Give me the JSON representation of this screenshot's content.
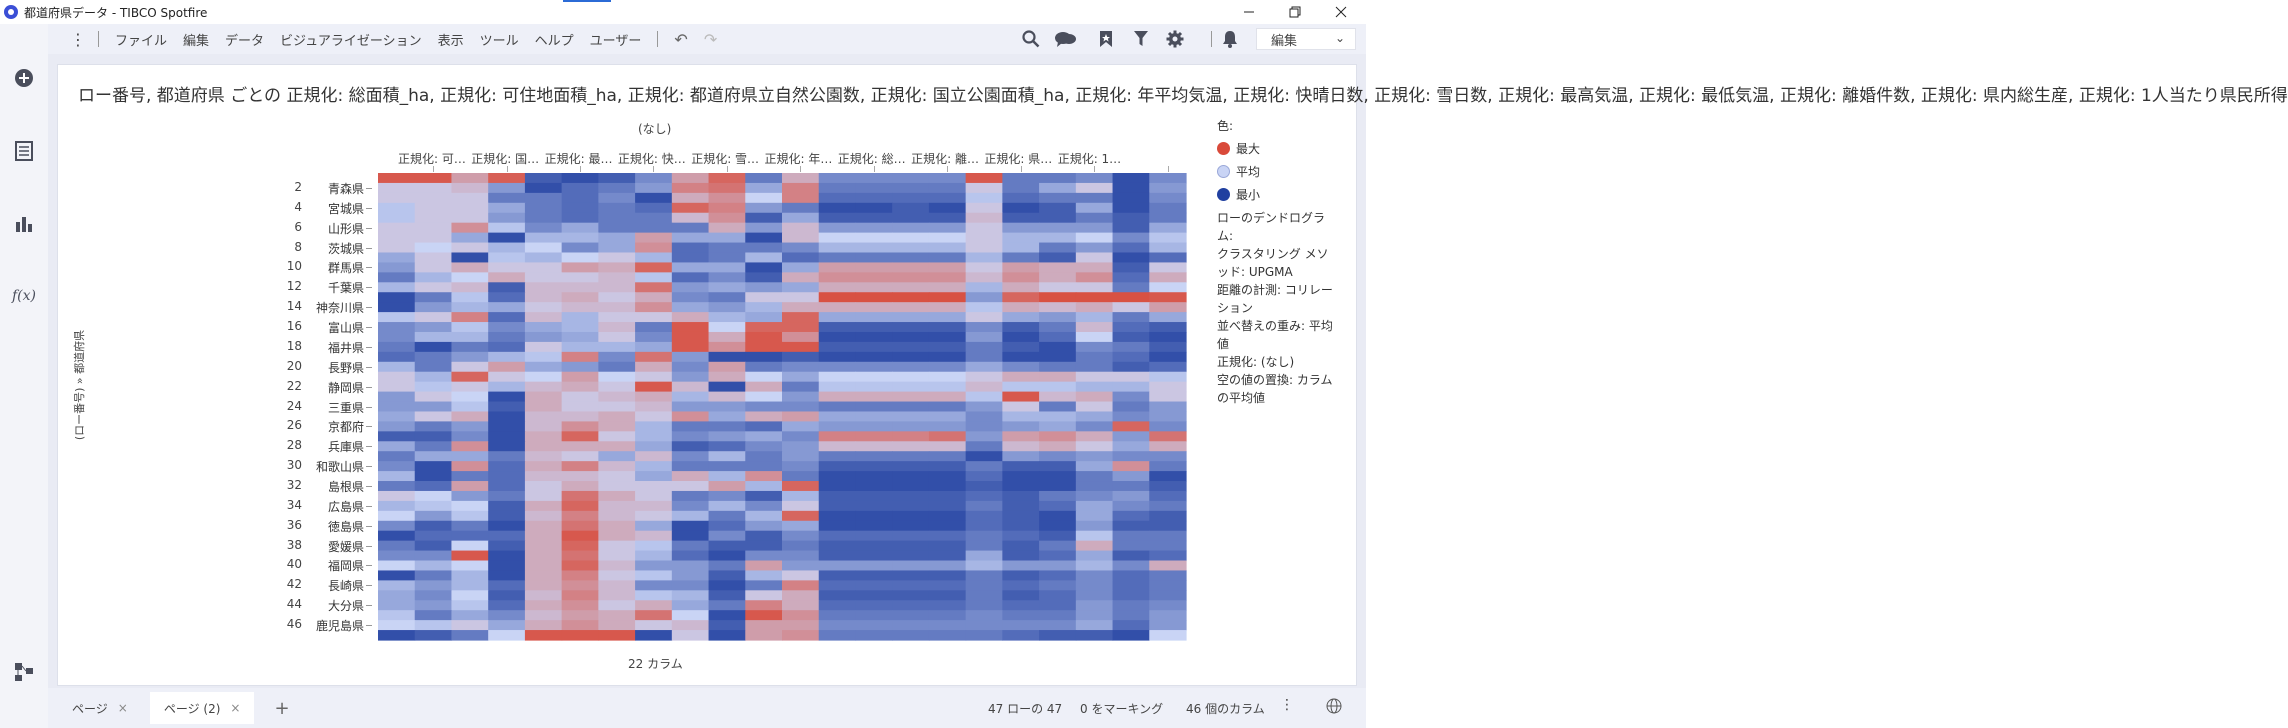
{
  "window": {
    "title": "都道府県データ - TIBCO Spotfire"
  },
  "menu": [
    "ファイル",
    "編集",
    "データ",
    "ビジュアライゼーション",
    "表示",
    "ツール",
    "ヘルプ",
    "ユーザー"
  ],
  "toolbar": {
    "edit_label": "編集"
  },
  "visualization": {
    "title": "ロー番号, 都道府県 ごとの 正規化: 総面積_ha, 正規化: 可住地面積_ha, 正規化: 都道府県立自然公園数, 正規化: 国立公園面積_ha, 正規化: 年平均気温, 正規化: 快晴日数, 正規化: 雪日数, 正規化: 最高気温, 正規化: 最低気温, 正規化: 離婚件数, 正規化: 県内総生産, 正規化: 1人当たり県民所得",
    "column_group": "(なし)",
    "y_axis_title": "(ロー番号)  »  都道府県",
    "x_axis_title": "22 カラム"
  },
  "chart_data": {
    "type": "heatmap",
    "column_headers": [
      "正規化: 可…",
      "正規化: 国…",
      "正規化: 最…",
      "正規化: 快…",
      "正規化: 雪…",
      "正規化: 年…",
      "正規化: 総…",
      "正規化: 離…",
      "正規化: 県…",
      "正規化: 1…"
    ],
    "row_tick_numbers": [
      "2",
      "4",
      "6",
      "8",
      "10",
      "12",
      "14",
      "16",
      "18",
      "20",
      "22",
      "24",
      "26",
      "28",
      "30",
      "32",
      "34",
      "36",
      "38",
      "40",
      "42",
      "44",
      "46"
    ],
    "row_tick_labels": [
      "青森県",
      "宮城県",
      "山形県",
      "茨城県",
      "群馬県",
      "千葉県",
      "神奈川県",
      "富山県",
      "福井県",
      "長野県",
      "静岡県",
      "三重県",
      "京都府",
      "兵庫県",
      "和歌山県",
      "島根県",
      "広島県",
      "徳島県",
      "愛媛県",
      "福岡県",
      "長崎県",
      "大分県",
      "鹿児島県"
    ],
    "n_rows": 47,
    "n_columns": 22,
    "color_scale": {
      "max": "#d94a3a",
      "mid": "#c9d4f5",
      "min": "#2140a0"
    },
    "values": [
      [
        0.9,
        0.9,
        0.4,
        0.85,
        -0.8,
        -0.9,
        -0.8,
        -0.5,
        0.4,
        0.8,
        -0.6,
        0.3,
        -0.5,
        -0.5,
        -0.5,
        -0.5,
        0.9,
        -0.6,
        -0.6,
        -0.5,
        -0.9,
        -0.5
      ],
      [
        0.1,
        0.1,
        0.2,
        -0.4,
        -0.9,
        -0.7,
        -0.6,
        -0.4,
        0.6,
        0.7,
        -0.3,
        0.6,
        -0.6,
        -0.6,
        -0.6,
        -0.6,
        0.1,
        -0.6,
        -0.3,
        0.1,
        -0.9,
        -0.4
      ],
      [
        0.1,
        0.1,
        0.1,
        -0.6,
        -0.6,
        -0.7,
        -0.5,
        -0.9,
        0.3,
        0.5,
        0.0,
        0.6,
        -0.7,
        -0.7,
        -0.7,
        -0.7,
        -0.1,
        -0.7,
        -0.6,
        -0.6,
        -0.9,
        -0.5
      ],
      [
        -0.1,
        0.1,
        0.1,
        -0.3,
        -0.6,
        -0.7,
        -0.6,
        -0.7,
        0.8,
        0.6,
        -0.4,
        -0.6,
        -0.9,
        -0.9,
        -0.8,
        -0.9,
        0.1,
        -0.9,
        -0.8,
        -0.3,
        -0.9,
        -0.6
      ],
      [
        -0.1,
        0.1,
        0.1,
        -0.4,
        -0.6,
        -0.7,
        -0.6,
        -0.6,
        0.2,
        0.5,
        -0.8,
        -0.3,
        -0.8,
        -0.8,
        -0.8,
        -0.8,
        0.2,
        -0.8,
        -0.8,
        -0.6,
        -0.8,
        -0.6
      ],
      [
        0.1,
        0.1,
        0.5,
        -0.1,
        -0.5,
        -0.3,
        -0.6,
        -0.6,
        -0.6,
        0.3,
        -0.4,
        0.2,
        -0.4,
        -0.4,
        -0.4,
        -0.4,
        0.1,
        -0.4,
        -0.4,
        -0.4,
        -0.8,
        -0.3
      ],
      [
        0.1,
        0.1,
        -0.3,
        -0.9,
        -0.2,
        -0.2,
        -0.3,
        0.4,
        -0.3,
        -0.3,
        -0.9,
        0.2,
        0.0,
        0.0,
        0.0,
        0.0,
        0.1,
        -0.2,
        -0.2,
        0.0,
        -0.5,
        -0.1
      ],
      [
        0.1,
        0.0,
        0.1,
        -0.2,
        0.0,
        -0.5,
        -0.3,
        0.5,
        -0.7,
        -0.6,
        -0.6,
        -0.5,
        -0.2,
        -0.2,
        -0.2,
        -0.2,
        0.1,
        -0.2,
        -0.6,
        -0.4,
        -0.7,
        -0.2
      ],
      [
        -0.3,
        0.1,
        -0.9,
        -0.1,
        -0.2,
        0.0,
        0.1,
        -0.2,
        -0.7,
        -0.6,
        -0.2,
        -0.7,
        -0.6,
        -0.6,
        -0.6,
        -0.6,
        -0.2,
        -0.6,
        -0.8,
        0.1,
        -0.9,
        -0.7
      ],
      [
        -0.4,
        0.1,
        0.3,
        0.1,
        0.1,
        0.4,
        0.3,
        0.8,
        -0.3,
        -0.3,
        -0.9,
        -0.3,
        0.4,
        0.4,
        0.4,
        0.4,
        0.1,
        0.4,
        0.3,
        0.3,
        -0.8,
        0.1
      ],
      [
        -0.6,
        -0.2,
        0.0,
        0.3,
        0.1,
        0.1,
        0.2,
        -0.1,
        -0.7,
        -0.5,
        -0.8,
        0.3,
        0.5,
        0.5,
        0.5,
        0.5,
        0.2,
        0.5,
        0.3,
        0.5,
        -0.7,
        0.3
      ],
      [
        -0.2,
        0.1,
        0.2,
        -0.8,
        0.2,
        0.2,
        0.2,
        0.7,
        -0.4,
        -0.3,
        -0.4,
        -0.3,
        0.3,
        0.3,
        0.3,
        0.3,
        -0.2,
        0.3,
        0.1,
        0.1,
        -0.6,
        0.0
      ],
      [
        -0.9,
        -0.6,
        -0.1,
        -0.7,
        0.2,
        0.3,
        0.1,
        0.3,
        -0.5,
        -0.6,
        0.1,
        0.1,
        0.95,
        0.95,
        0.95,
        0.95,
        -0.4,
        0.8,
        0.95,
        0.95,
        0.95,
        0.9
      ],
      [
        -0.9,
        -0.4,
        -0.2,
        -0.3,
        0.1,
        0.2,
        0.2,
        0.5,
        -0.3,
        -0.4,
        -0.2,
        0.3,
        0.3,
        0.3,
        0.3,
        0.3,
        -0.1,
        0.3,
        0.2,
        0.3,
        0.1,
        0.4
      ],
      [
        -0.1,
        0.1,
        0.6,
        -0.7,
        0.2,
        -0.2,
        0.1,
        0.1,
        0.3,
        -0.2,
        -0.3,
        0.8,
        -0.3,
        -0.3,
        -0.3,
        -0.3,
        0.1,
        -0.3,
        -0.4,
        -0.2,
        -0.6,
        -0.3
      ],
      [
        -0.5,
        -0.4,
        -0.1,
        -0.5,
        -0.3,
        -0.2,
        0.2,
        -0.6,
        0.9,
        0.0,
        0.8,
        0.8,
        -0.8,
        -0.8,
        -0.8,
        -0.8,
        -0.5,
        -0.8,
        -0.6,
        0.2,
        -0.7,
        -0.8
      ],
      [
        -0.5,
        -0.2,
        -0.2,
        -0.6,
        -0.4,
        -0.3,
        0.1,
        -0.5,
        0.9,
        0.3,
        0.9,
        0.5,
        -0.9,
        -0.9,
        -0.9,
        -0.9,
        -0.4,
        -0.9,
        -0.7,
        0.0,
        -0.8,
        -0.9
      ],
      [
        -0.6,
        -0.9,
        -0.6,
        -0.7,
        0.1,
        -0.2,
        -0.2,
        -0.3,
        0.9,
        0.5,
        0.9,
        0.9,
        -0.8,
        -0.8,
        -0.8,
        -0.8,
        -0.6,
        -0.8,
        -0.9,
        -0.5,
        -0.6,
        -0.8
      ],
      [
        -0.7,
        -0.6,
        -0.4,
        -0.2,
        -0.1,
        0.6,
        -0.5,
        0.7,
        -0.4,
        -0.9,
        -0.9,
        -0.8,
        -0.9,
        -0.9,
        -0.9,
        -0.9,
        -0.6,
        -0.9,
        -0.9,
        -0.6,
        -0.7,
        -0.9
      ],
      [
        -0.2,
        -0.6,
        0.1,
        0.4,
        -0.3,
        -0.4,
        -0.6,
        0.3,
        -0.5,
        0.4,
        -0.6,
        -0.5,
        -0.5,
        -0.5,
        -0.5,
        -0.5,
        -0.3,
        -0.5,
        -0.6,
        -0.6,
        -0.8,
        -0.7
      ],
      [
        0.1,
        -0.2,
        0.8,
        0.1,
        0.0,
        0.4,
        0.0,
        0.1,
        -0.4,
        0.3,
        0.0,
        -0.3,
        0.0,
        0.0,
        0.0,
        0.0,
        0.1,
        0.3,
        0.3,
        0.1,
        0.1,
        -0.1
      ],
      [
        0.1,
        -0.1,
        0.1,
        -0.2,
        0.2,
        0.3,
        0.1,
        0.9,
        0.2,
        -0.9,
        0.3,
        -0.6,
        -0.1,
        -0.1,
        -0.1,
        -0.1,
        0.2,
        -0.1,
        -0.1,
        -0.2,
        -0.2,
        0.1
      ],
      [
        -0.4,
        0.1,
        0.0,
        -0.9,
        0.3,
        0.1,
        0.2,
        0.3,
        -0.2,
        0.2,
        0.0,
        -0.4,
        0.3,
        0.3,
        0.3,
        0.3,
        -0.1,
        0.9,
        0.2,
        0.3,
        -0.5,
        0.1
      ],
      [
        -0.4,
        -0.4,
        -0.1,
        -0.8,
        0.3,
        0.1,
        0.1,
        0.2,
        -0.4,
        -0.4,
        -0.5,
        -0.5,
        -0.6,
        -0.6,
        -0.6,
        -0.6,
        -0.4,
        0.1,
        -0.6,
        0.1,
        -0.6,
        -0.4
      ],
      [
        -0.3,
        0.1,
        0.3,
        -0.9,
        0.2,
        0.2,
        0.3,
        0.1,
        0.5,
        -0.3,
        0.3,
        0.4,
        -0.3,
        -0.3,
        -0.3,
        -0.3,
        -0.5,
        -0.2,
        -0.2,
        -0.3,
        -0.5,
        -0.4
      ],
      [
        -0.4,
        -0.6,
        -0.4,
        -0.9,
        0.2,
        0.5,
        0.3,
        -0.2,
        -0.6,
        -0.6,
        -0.7,
        -0.3,
        -0.4,
        -0.4,
        -0.4,
        -0.4,
        -0.5,
        -0.4,
        -0.3,
        -0.5,
        0.8,
        -0.5
      ],
      [
        -0.8,
        -0.8,
        -0.5,
        -0.9,
        0.3,
        0.8,
        0.1,
        -0.2,
        -0.5,
        -0.4,
        -0.3,
        -0.5,
        0.6,
        0.6,
        0.6,
        0.7,
        -0.4,
        0.4,
        0.5,
        0.3,
        -0.4,
        0.7
      ],
      [
        -0.3,
        -0.6,
        0.5,
        -0.9,
        0.3,
        0.3,
        0.3,
        -0.3,
        -0.8,
        -0.7,
        -0.5,
        -0.4,
        0.2,
        0.2,
        0.2,
        0.2,
        -0.6,
        0.2,
        0.3,
        0.1,
        -0.3,
        0.3
      ],
      [
        -0.6,
        -0.3,
        -0.3,
        -0.6,
        0.2,
        0.1,
        -0.3,
        0.2,
        -0.5,
        -0.2,
        -0.6,
        -0.4,
        -0.6,
        -0.6,
        -0.6,
        -0.6,
        -0.9,
        -0.4,
        -0.5,
        -0.4,
        -0.5,
        -0.5
      ],
      [
        -0.5,
        -0.9,
        0.5,
        -0.7,
        0.3,
        0.6,
        0.2,
        -0.2,
        -0.6,
        -0.6,
        -0.6,
        -0.5,
        -0.8,
        -0.8,
        -0.8,
        -0.8,
        -0.6,
        -0.8,
        -0.8,
        -0.3,
        0.5,
        -0.6
      ],
      [
        -0.2,
        -0.9,
        -0.6,
        -0.7,
        0.2,
        0.2,
        0.1,
        -0.3,
        0.3,
        -0.2,
        0.5,
        -0.6,
        -0.9,
        -0.9,
        -0.9,
        -0.9,
        -0.7,
        -0.9,
        -0.9,
        -0.6,
        -0.4,
        -0.9
      ],
      [
        -0.6,
        -0.7,
        0.4,
        -0.7,
        0.1,
        0.3,
        0.1,
        0.1,
        0.1,
        0.4,
        -0.2,
        0.8,
        -0.9,
        -0.9,
        -0.9,
        -0.9,
        -0.8,
        -0.9,
        -0.9,
        -0.6,
        -0.6,
        -0.8
      ],
      [
        0.1,
        0.0,
        -0.4,
        -0.6,
        0.1,
        0.7,
        0.3,
        0.1,
        -0.6,
        -0.5,
        -0.8,
        -0.2,
        -0.8,
        -0.8,
        -0.8,
        -0.8,
        -0.7,
        -0.8,
        -0.6,
        -0.5,
        -0.4,
        -0.7
      ],
      [
        -0.2,
        -0.1,
        0.0,
        -0.8,
        0.3,
        0.8,
        0.2,
        0.2,
        -0.5,
        -0.2,
        -0.5,
        0.1,
        -0.8,
        -0.8,
        -0.8,
        -0.8,
        -0.6,
        -0.8,
        -0.7,
        -0.3,
        -0.5,
        -0.6
      ],
      [
        0.0,
        -0.4,
        -0.1,
        -0.8,
        0.2,
        0.6,
        0.2,
        0.1,
        -0.2,
        -0.6,
        -0.2,
        0.8,
        -0.9,
        -0.9,
        -0.9,
        -0.9,
        -0.7,
        -0.8,
        -0.9,
        -0.3,
        -0.7,
        -0.8
      ],
      [
        -0.5,
        -0.8,
        -0.6,
        -0.9,
        0.3,
        0.7,
        0.3,
        -0.3,
        -0.9,
        -0.7,
        -0.4,
        -0.3,
        -0.9,
        -0.9,
        -0.9,
        -0.9,
        -0.7,
        -0.8,
        -0.9,
        -0.4,
        -0.8,
        -0.8
      ],
      [
        -0.9,
        -0.7,
        -0.7,
        -0.7,
        0.3,
        0.9,
        0.3,
        0.2,
        -0.9,
        -0.5,
        -0.8,
        -0.5,
        -0.7,
        -0.7,
        -0.7,
        -0.7,
        -0.6,
        -0.7,
        -0.8,
        -0.1,
        -0.6,
        -0.6
      ],
      [
        -0.6,
        -0.8,
        0.0,
        -0.8,
        0.3,
        0.8,
        0.1,
        -0.1,
        -0.6,
        -0.8,
        -0.8,
        -0.6,
        -0.8,
        -0.8,
        -0.8,
        -0.8,
        -0.6,
        -0.8,
        -0.6,
        0.3,
        -0.6,
        -0.6
      ],
      [
        -0.5,
        -0.5,
        0.9,
        -0.9,
        0.3,
        0.7,
        0.1,
        -0.2,
        -0.7,
        -0.9,
        -0.5,
        -0.5,
        -0.8,
        -0.8,
        -0.8,
        -0.8,
        -0.3,
        -0.8,
        -0.7,
        -0.3,
        -0.8,
        -0.7
      ],
      [
        0.0,
        -0.2,
        0.0,
        -0.9,
        0.3,
        0.8,
        0.2,
        -0.4,
        -0.4,
        -0.6,
        0.4,
        -0.4,
        -0.4,
        -0.4,
        -0.4,
        -0.4,
        -0.2,
        -0.4,
        -0.4,
        -0.2,
        -0.5,
        0.3
      ],
      [
        -0.9,
        -0.6,
        -0.2,
        -0.9,
        0.3,
        0.6,
        0.1,
        -0.1,
        -0.4,
        -0.8,
        -0.2,
        0.1,
        -0.8,
        -0.8,
        -0.8,
        -0.8,
        -0.6,
        -0.8,
        -0.7,
        -0.5,
        -0.7,
        -0.6
      ],
      [
        -0.2,
        -0.4,
        -0.2,
        -0.7,
        0.3,
        0.5,
        0.2,
        -0.5,
        -0.5,
        -0.9,
        -0.6,
        0.6,
        -0.7,
        -0.7,
        -0.7,
        -0.7,
        -0.6,
        -0.7,
        -0.6,
        -0.5,
        -0.7,
        -0.6
      ],
      [
        -0.3,
        -0.5,
        0.0,
        -0.8,
        0.2,
        0.6,
        0.2,
        -0.1,
        -0.2,
        -0.8,
        0.1,
        0.3,
        -0.8,
        -0.8,
        -0.8,
        -0.8,
        -0.6,
        -0.8,
        -0.7,
        -0.5,
        -0.7,
        -0.6
      ],
      [
        -0.3,
        -0.4,
        -0.1,
        -0.7,
        0.3,
        0.5,
        0.1,
        0.3,
        -0.3,
        -0.6,
        0.6,
        0.3,
        -0.7,
        -0.7,
        -0.7,
        -0.7,
        -0.6,
        -0.7,
        -0.7,
        -0.4,
        -0.6,
        -0.5
      ],
      [
        -0.1,
        -0.6,
        -0.3,
        -0.5,
        0.2,
        0.4,
        0.3,
        0.7,
        0.0,
        -0.9,
        0.9,
        0.5,
        -0.6,
        -0.6,
        -0.6,
        -0.6,
        -0.5,
        -0.6,
        -0.6,
        -0.4,
        -0.6,
        -0.4
      ],
      [
        0.0,
        -0.1,
        0.1,
        -0.3,
        0.3,
        0.5,
        0.3,
        0.1,
        0.2,
        -0.8,
        0.4,
        0.4,
        -0.5,
        -0.5,
        -0.5,
        -0.5,
        -0.5,
        -0.5,
        -0.5,
        -0.3,
        -0.7,
        -0.4
      ],
      [
        -0.9,
        -0.8,
        -0.6,
        0.0,
        0.9,
        0.9,
        0.9,
        -0.9,
        0.1,
        -0.9,
        0.4,
        0.5,
        -0.6,
        -0.6,
        -0.6,
        -0.6,
        -0.6,
        -0.7,
        -0.8,
        -0.8,
        -0.9,
        0.0
      ]
    ]
  },
  "legend": {
    "title": "色:",
    "items": [
      {
        "label": "最大",
        "color": "#d94a3a"
      },
      {
        "label": "平均",
        "color": "#c9d4f5"
      },
      {
        "label": "最小",
        "color": "#2140a0"
      }
    ],
    "notes": [
      "ローのデンドログラム:",
      "クラスタリング メソッド: UPGMA",
      "距離の計測: コリレーション",
      "並べ替えの重み: 平均値",
      "正規化: (なし)",
      "空の値の置換: カラムの平均値"
    ]
  },
  "tabs": [
    {
      "label": "ページ",
      "active": false
    },
    {
      "label": "ページ (2)",
      "active": true
    }
  ],
  "status": {
    "rows": "47 ローの 47",
    "marked": "0 をマーキング",
    "columns": "46 個のカラム"
  },
  "icons": {
    "left_rail": [
      "add-icon",
      "data-table-icon",
      "chart-icon",
      "fx-icon",
      "hierarchy-icon"
    ],
    "toolbar": [
      "search-icon",
      "comments-icon",
      "bookmark-icon",
      "filter-icon",
      "gear-icon",
      "bell-icon"
    ]
  }
}
